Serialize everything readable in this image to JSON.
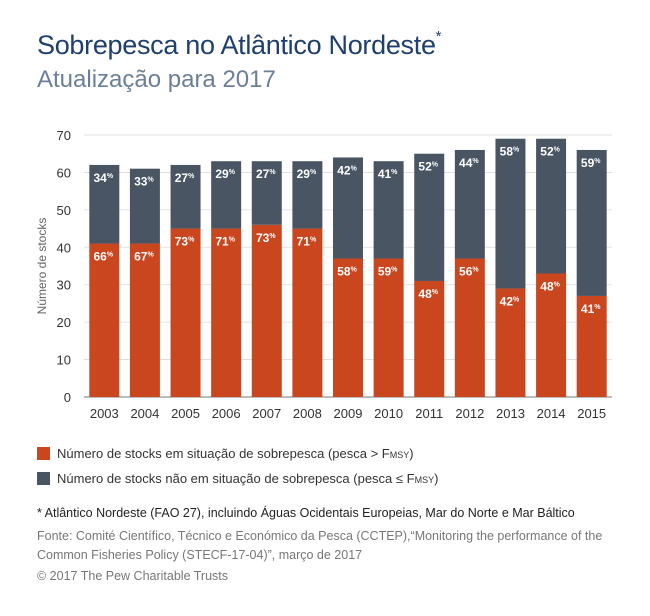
{
  "header": {
    "title": "Sobrepesca no Atlântico Nordeste",
    "title_mark": "*",
    "subtitle": "Atualização para 2017"
  },
  "chart_data": {
    "type": "bar",
    "stacked": true,
    "categories": [
      "2003",
      "2004",
      "2005",
      "2006",
      "2007",
      "2008",
      "2009",
      "2010",
      "2011",
      "2012",
      "2013",
      "2014",
      "2015"
    ],
    "series": [
      {
        "name": "Número de stocks em situação de sobrepesca (pesca > FMSY)",
        "color": "#c9461f",
        "values": [
          41,
          41,
          45,
          45,
          46,
          45,
          37,
          37,
          31,
          37,
          29,
          33,
          27
        ],
        "labels": [
          "66%",
          "67%",
          "73%",
          "71%",
          "73%",
          "71%",
          "58%",
          "59%",
          "48%",
          "56%",
          "42%",
          "48%",
          "41%"
        ]
      },
      {
        "name": "Número de stocks não em situação de sobrepesca (pesca ≤ FMSY)",
        "color": "#4a5564",
        "values": [
          21,
          20,
          17,
          18,
          17,
          18,
          27,
          26,
          34,
          29,
          40,
          36,
          39
        ],
        "labels": [
          "34%",
          "33%",
          "27%",
          "29%",
          "27%",
          "29%",
          "42%",
          "41%",
          "52%",
          "44%",
          "58%",
          "52%",
          "59%"
        ]
      }
    ],
    "ylabel": "Número de stocks",
    "ylim": [
      0,
      70
    ],
    "yticks": [
      0,
      10,
      20,
      30,
      40,
      50,
      60,
      70
    ],
    "grid": true
  },
  "legend": {
    "item1": {
      "text": "Número de stocks em situação de sobrepesca (pesca > F",
      "sub": "MSY",
      "tail": ")",
      "color": "#c9461f"
    },
    "item2": {
      "text": "Número de stocks não em situação de sobrepesca (pesca ≤ F",
      "sub": "MSY",
      "tail": ")",
      "color": "#4a5564"
    }
  },
  "footer": {
    "note": "*  Atlântico Nordeste (FAO 27), incluindo Águas Ocidentais Europeias, Mar do Norte e Mar Báltico",
    "source": "Fonte: Comité Científico, Técnico e Económico da Pesca (CCTEP),“Monitoring the performance of the Common Fisheries Policy (STECF-17-04)”, março de 2017",
    "copyright": "© 2017 The Pew Charitable Trusts"
  }
}
